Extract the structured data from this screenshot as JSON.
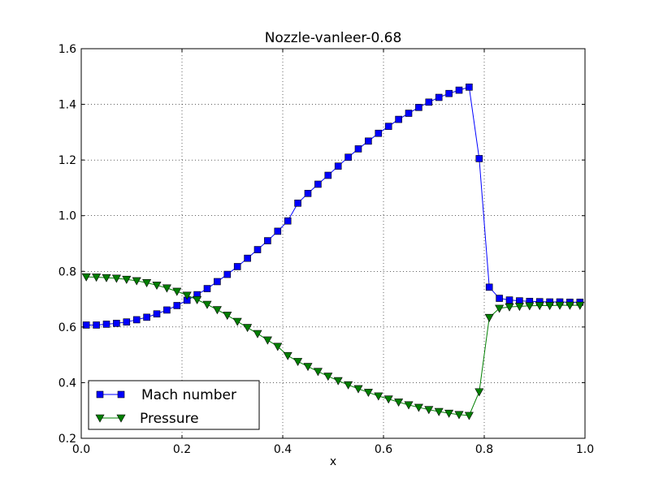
{
  "chart_data": {
    "type": "line",
    "title": "Nozzle-vanleer-0.68",
    "xlabel": "x",
    "ylabel": "",
    "xlim": [
      0.0,
      1.0
    ],
    "ylim": [
      0.2,
      1.6
    ],
    "xticks": [
      0.0,
      0.2,
      0.4,
      0.6,
      0.8,
      1.0
    ],
    "yticks": [
      0.2,
      0.4,
      0.6,
      0.8,
      1.0,
      1.2,
      1.4,
      1.6
    ],
    "xtick_labels": [
      "0.0",
      "0.2",
      "0.4",
      "0.6",
      "0.8",
      "1.0"
    ],
    "ytick_labels": [
      "0.2",
      "0.4",
      "0.6",
      "0.8",
      "1.0",
      "1.2",
      "1.4",
      "1.6"
    ],
    "grid": true,
    "legend_position": "bottom-left",
    "x": [
      0.01,
      0.03,
      0.05,
      0.07,
      0.09,
      0.11,
      0.13,
      0.15,
      0.17,
      0.19,
      0.21,
      0.23,
      0.25,
      0.27,
      0.29,
      0.31,
      0.33,
      0.35,
      0.37,
      0.39,
      0.41,
      0.43,
      0.45,
      0.47,
      0.49,
      0.51,
      0.53,
      0.55,
      0.57,
      0.59,
      0.61,
      0.63,
      0.65,
      0.67,
      0.69,
      0.71,
      0.73,
      0.75,
      0.77,
      0.79,
      0.81,
      0.83,
      0.85,
      0.87,
      0.89,
      0.91,
      0.93,
      0.95,
      0.97,
      0.99
    ],
    "series": [
      {
        "name": "Mach number",
        "color": "#0000ff",
        "marker": "square",
        "values": [
          0.607,
          0.607,
          0.61,
          0.613,
          0.618,
          0.626,
          0.635,
          0.647,
          0.661,
          0.677,
          0.696,
          0.716,
          0.738,
          0.763,
          0.789,
          0.817,
          0.847,
          0.878,
          0.91,
          0.944,
          0.981,
          1.045,
          1.08,
          1.113,
          1.145,
          1.178,
          1.21,
          1.24,
          1.268,
          1.296,
          1.321,
          1.346,
          1.368,
          1.389,
          1.408,
          1.425,
          1.439,
          1.451,
          1.462,
          1.205,
          0.743,
          0.703,
          0.697,
          0.694,
          0.692,
          0.691,
          0.69,
          0.69,
          0.689,
          0.689
        ]
      },
      {
        "name": "Pressure",
        "color": "#007f00",
        "marker": "triangle-down",
        "values": [
          0.78,
          0.779,
          0.777,
          0.775,
          0.771,
          0.766,
          0.759,
          0.75,
          0.74,
          0.728,
          0.714,
          0.698,
          0.681,
          0.662,
          0.642,
          0.62,
          0.598,
          0.576,
          0.553,
          0.53,
          0.497,
          0.476,
          0.458,
          0.44,
          0.423,
          0.407,
          0.392,
          0.378,
          0.365,
          0.352,
          0.341,
          0.33,
          0.32,
          0.311,
          0.303,
          0.296,
          0.29,
          0.285,
          0.282,
          0.367,
          0.634,
          0.667,
          0.672,
          0.674,
          0.676,
          0.677,
          0.677,
          0.678,
          0.678,
          0.678
        ]
      }
    ]
  }
}
